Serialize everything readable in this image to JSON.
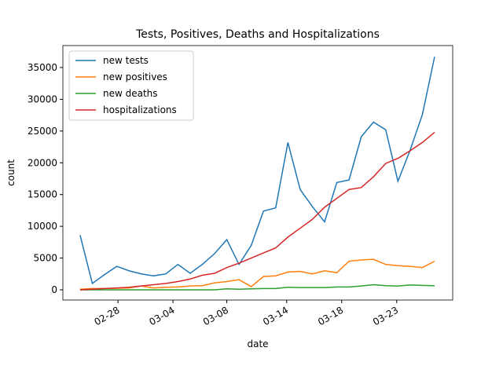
{
  "chart_data": {
    "type": "line",
    "title": "Tests, Positives, Deaths and Hospitalizations",
    "xlabel": "date",
    "ylabel": "count",
    "categories": [
      null,
      null,
      null,
      null,
      null,
      null,
      null,
      null,
      null,
      null,
      null,
      null,
      null,
      null,
      null,
      null,
      null,
      null,
      null,
      null,
      null,
      null,
      null,
      null,
      null,
      null,
      null,
      null,
      null,
      null
    ],
    "xlim": [
      -1.41,
      30.48
    ],
    "xticks": [
      {
        "value": 3.1,
        "label": "02-28"
      },
      {
        "value": 7.6,
        "label": "03-04"
      },
      {
        "value": 12.0,
        "label": "03-08"
      },
      {
        "value": 16.9,
        "label": "03-14"
      },
      {
        "value": 21.4,
        "label": "03-18"
      },
      {
        "value": 25.9,
        "label": "03-23"
      }
    ],
    "ylim": [
      -1608,
      38460
    ],
    "yticks": [
      0,
      5000,
      10000,
      15000,
      20000,
      25000,
      30000,
      35000
    ],
    "legend": "upper left",
    "series": [
      {
        "name": "new tests",
        "color": "#1f77b4",
        "values": [
          8600,
          1000,
          2400,
          3700,
          3000,
          2500,
          2200,
          2500,
          4000,
          2600,
          4000,
          5700,
          7900,
          4000,
          7000,
          12400,
          12900,
          23200,
          15800,
          13100,
          10700,
          16900,
          17300,
          24100,
          26400,
          25200,
          17100,
          22000,
          27600,
          36700
        ]
      },
      {
        "name": "new positives",
        "color": "#ff7f0e",
        "values": [
          100,
          200,
          200,
          250,
          300,
          600,
          300,
          400,
          450,
          600,
          650,
          1100,
          1300,
          1600,
          500,
          2100,
          2200,
          2800,
          2900,
          2500,
          3000,
          2700,
          4500,
          4700,
          4800,
          4000,
          3800,
          3700,
          3500,
          4500
        ]
      },
      {
        "name": "new deaths",
        "color": "#2ca02c",
        "values": [
          0,
          0,
          0,
          0,
          0,
          0,
          0,
          0,
          0,
          0,
          0,
          0,
          150,
          100,
          150,
          200,
          200,
          400,
          350,
          350,
          350,
          450,
          450,
          600,
          800,
          650,
          600,
          750,
          700,
          650
        ]
      },
      {
        "name": "hospitalizations",
        "color": "#d62728",
        "values": [
          0,
          100,
          200,
          300,
          400,
          600,
          800,
          1000,
          1300,
          1700,
          2300,
          2600,
          3500,
          4200,
          5000,
          5800,
          6600,
          8300,
          9700,
          11100,
          13000,
          14400,
          15800,
          16100,
          17800,
          19900,
          20700,
          21900,
          23200,
          24800
        ]
      }
    ]
  }
}
